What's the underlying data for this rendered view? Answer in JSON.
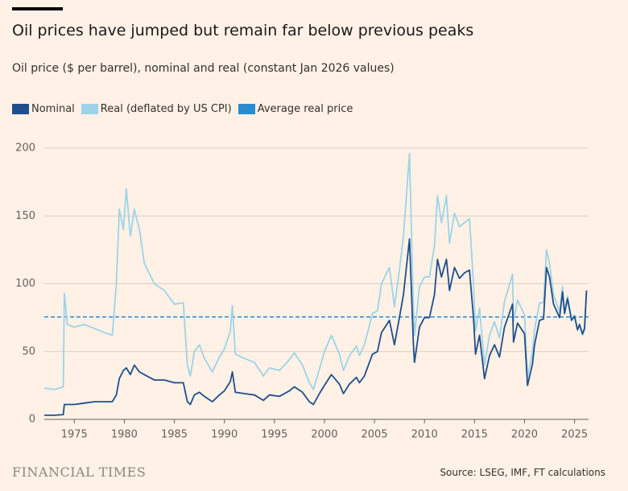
{
  "brand": "FINANCIAL TIMES",
  "chart_data": {
    "type": "line",
    "title": "Oil prices have jumped but remain far below previous peaks",
    "subtitle": "Oil price ($ per barrel), nominal and real (constant Jan 2026 values)",
    "source": "Source: LSEG, IMF, FT calculations",
    "xlim": [
      1972,
      2026.4
    ],
    "xticks": [
      1975,
      1980,
      1985,
      1990,
      1995,
      2000,
      2005,
      2010,
      2015,
      2020,
      2025
    ],
    "ylim": [
      0,
      200
    ],
    "yticks": [
      0,
      50,
      100,
      150,
      200
    ],
    "grid": true,
    "x": [
      1972.0,
      1973.0,
      1973.9,
      1974.0,
      1974.3,
      1975.0,
      1976.0,
      1977.0,
      1978.0,
      1978.8,
      1979.2,
      1979.5,
      1979.9,
      1980.2,
      1980.6,
      1981.0,
      1981.5,
      1982.0,
      1983.0,
      1984.0,
      1985.0,
      1985.9,
      1986.3,
      1986.6,
      1987.0,
      1987.5,
      1988.0,
      1988.8,
      1989.5,
      1990.0,
      1990.6,
      1990.8,
      1991.1,
      1992.0,
      1993.0,
      1993.9,
      1994.5,
      1995.5,
      1996.5,
      1997.0,
      1997.8,
      1998.5,
      1998.9,
      1999.5,
      2000.0,
      2000.7,
      2001.5,
      2001.9,
      2002.5,
      2003.2,
      2003.5,
      2004.0,
      2004.8,
      2005.3,
      2005.7,
      2006.5,
      2007.0,
      2007.5,
      2007.9,
      2008.5,
      2008.9,
      2009.0,
      2009.5,
      2010.0,
      2010.5,
      2011.0,
      2011.3,
      2011.7,
      2012.2,
      2012.5,
      2013.0,
      2013.5,
      2014.0,
      2014.5,
      2014.9,
      2015.1,
      2015.5,
      2016.0,
      2016.5,
      2017.0,
      2017.5,
      2018.0,
      2018.8,
      2018.9,
      2019.3,
      2020.0,
      2020.3,
      2020.8,
      2021.0,
      2021.5,
      2021.9,
      2022.2,
      2022.5,
      2022.9,
      2023.5,
      2023.8,
      2024.0,
      2024.3,
      2024.7,
      2025.0,
      2025.3,
      2025.5,
      2025.8,
      2026.0,
      2026.2
    ],
    "series": [
      {
        "name": "Nominal",
        "color": "#1f4e8c",
        "values": [
          3,
          3,
          3.5,
          11,
          11,
          11,
          12,
          13,
          13,
          13,
          18,
          30,
          36,
          38,
          33,
          40,
          35,
          33,
          29,
          29,
          27,
          27,
          13,
          11,
          18,
          20,
          17,
          13,
          18,
          21,
          28,
          35,
          20,
          19,
          18,
          14,
          18,
          17,
          21,
          24,
          20,
          13,
          11,
          19,
          25,
          33,
          26,
          19,
          26,
          31,
          27,
          32,
          48,
          50,
          64,
          73,
          55,
          75,
          92,
          133,
          55,
          42,
          68,
          75,
          75,
          92,
          118,
          105,
          118,
          95,
          112,
          104,
          108,
          110,
          75,
          48,
          62,
          30,
          47,
          55,
          46,
          68,
          85,
          57,
          71,
          63,
          25,
          41,
          55,
          73,
          74,
          112,
          105,
          85,
          75,
          94,
          78,
          89,
          73,
          76,
          66,
          70,
          63,
          67,
          95
        ]
      },
      {
        "name": "Real (deflated by US CPI)",
        "color": "#9dd3e8",
        "values": [
          23,
          22,
          24,
          93,
          70,
          68,
          70,
          67,
          64,
          62,
          100,
          155,
          140,
          170,
          135,
          155,
          140,
          115,
          100,
          95,
          85,
          86,
          40,
          32,
          50,
          55,
          45,
          35,
          46,
          52,
          65,
          84,
          48,
          45,
          42,
          32,
          38,
          36,
          44,
          49,
          40,
          27,
          22,
          37,
          50,
          62,
          48,
          36,
          47,
          54,
          47,
          55,
          78,
          80,
          100,
          112,
          83,
          110,
          135,
          196,
          80,
          62,
          98,
          105,
          105,
          128,
          165,
          145,
          165,
          130,
          152,
          142,
          145,
          148,
          100,
          65,
          82,
          40,
          62,
          72,
          60,
          87,
          107,
          72,
          88,
          77,
          31,
          50,
          66,
          86,
          86,
          125,
          115,
          92,
          79,
          98,
          80,
          91,
          74,
          77,
          66,
          70,
          62,
          66,
          95
        ]
      }
    ],
    "average": {
      "name": "Average real price",
      "color": "#2a8ccf",
      "value": 75.5
    }
  }
}
